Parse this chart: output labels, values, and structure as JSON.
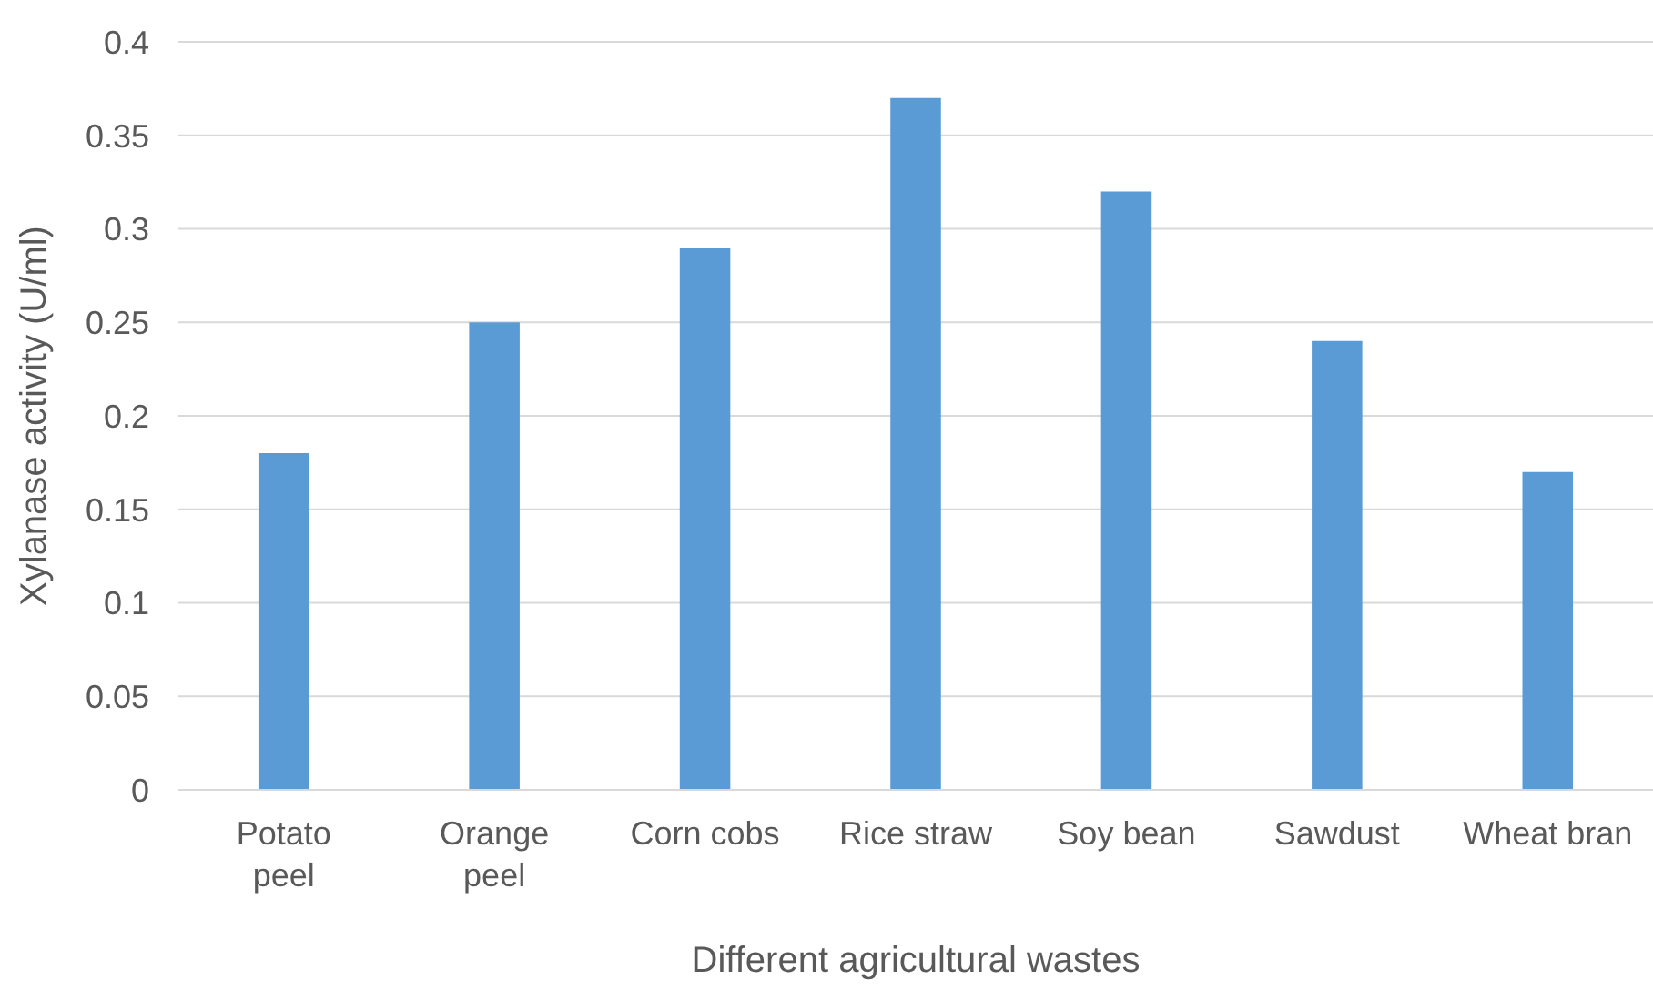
{
  "chart_data": {
    "type": "bar",
    "xlabel": "Different agricultural wastes",
    "ylabel": "Xylanase activity (U/ml)",
    "categories": [
      "Potato peel",
      "Orange peel",
      "Corn cobs",
      "Rice straw",
      "Soy bean",
      "Sawdust",
      "Wheat bran"
    ],
    "values": [
      0.18,
      0.25,
      0.29,
      0.37,
      0.32,
      0.24,
      0.17
    ],
    "color": "#5b9bd5",
    "ylim": [
      0,
      0.4
    ],
    "yticks": [
      0,
      0.05,
      0.1,
      0.15,
      0.2,
      0.25,
      0.3,
      0.35,
      0.4
    ],
    "grid": "y"
  }
}
